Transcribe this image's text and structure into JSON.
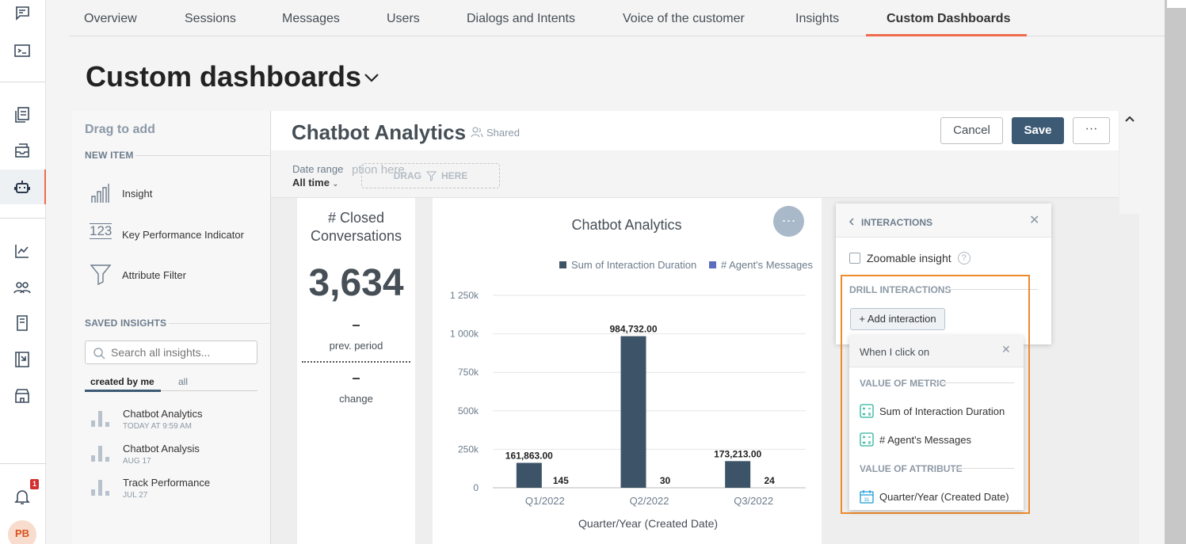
{
  "tabs": [
    "Overview",
    "Sessions",
    "Messages",
    "Users",
    "Dialogs and Intents",
    "Voice of the customer",
    "Insights",
    "Custom Dashboards"
  ],
  "page_title": "Custom dashboards",
  "notifications_count": "1",
  "avatar_initials": "PB",
  "left_panel": {
    "drag_to_add": "Drag to add",
    "new_item_heading": "NEW ITEM",
    "new_items": [
      "Insight",
      "Key Performance Indicator",
      "Attribute Filter"
    ],
    "saved_insights_heading": "SAVED INSIGHTS",
    "search_placeholder": "Search all insights...",
    "filter_tabs": [
      "created by me",
      "all"
    ],
    "saved_insights": [
      {
        "title": "Chatbot Analytics",
        "date": "TODAY AT 9:59 AM"
      },
      {
        "title": "Chatbot Analysis",
        "date": "AUG 17"
      },
      {
        "title": "Track Performance",
        "date": "JUL 27"
      }
    ]
  },
  "dashboard": {
    "title": "Chatbot Analytics",
    "shared_label": "Shared",
    "cancel": "Cancel",
    "save": "Save",
    "more": "···",
    "date_range_label": "Date range",
    "date_range_value": "All time",
    "placeholder_text": "ption here",
    "drag_here": "DRAG",
    "drag_here2": "HERE"
  },
  "kpi": {
    "title": "# Closed Conversations",
    "value": "3,634",
    "prev_dash": "–",
    "prev_label": "prev. period",
    "change_dash": "–",
    "change_label": "change"
  },
  "chart_data": {
    "type": "bar",
    "title": "Chatbot Analytics",
    "xlabel": "Quarter/Year (Created Date)",
    "categories": [
      "Q1/2022",
      "Q2/2022",
      "Q3/2022"
    ],
    "series": [
      {
        "name": "Sum of Interaction Duration",
        "values": [
          161863,
          984732,
          173213
        ],
        "labels": [
          "161,863.00",
          "984,732.00",
          "173,213.00"
        ],
        "color": "#3d5468"
      },
      {
        "name": "# Agent's Messages",
        "values": [
          145,
          30,
          24
        ],
        "labels": [
          "145",
          "30",
          "24"
        ],
        "color": "#5b6dc0"
      }
    ],
    "yticks": [
      "0",
      "250k",
      "500k",
      "750k",
      "1 000k",
      "1 250k"
    ],
    "ylim": [
      0,
      1250000
    ],
    "legend_position": "top-right",
    "grid": true
  },
  "interactions": {
    "title": "INTERACTIONS",
    "zoomable": "Zoomable insight",
    "help": "?",
    "drill_heading": "DRILL INTERACTIONS",
    "add_button": "+ Add interaction"
  },
  "dropdown": {
    "title": "When I click on",
    "metric_heading": "VALUE OF METRIC",
    "metrics": [
      "Sum of Interaction Duration",
      "# Agent's Messages"
    ],
    "attribute_heading": "VALUE OF ATTRIBUTE",
    "attributes": [
      "Quarter/Year (Created Date)"
    ]
  }
}
